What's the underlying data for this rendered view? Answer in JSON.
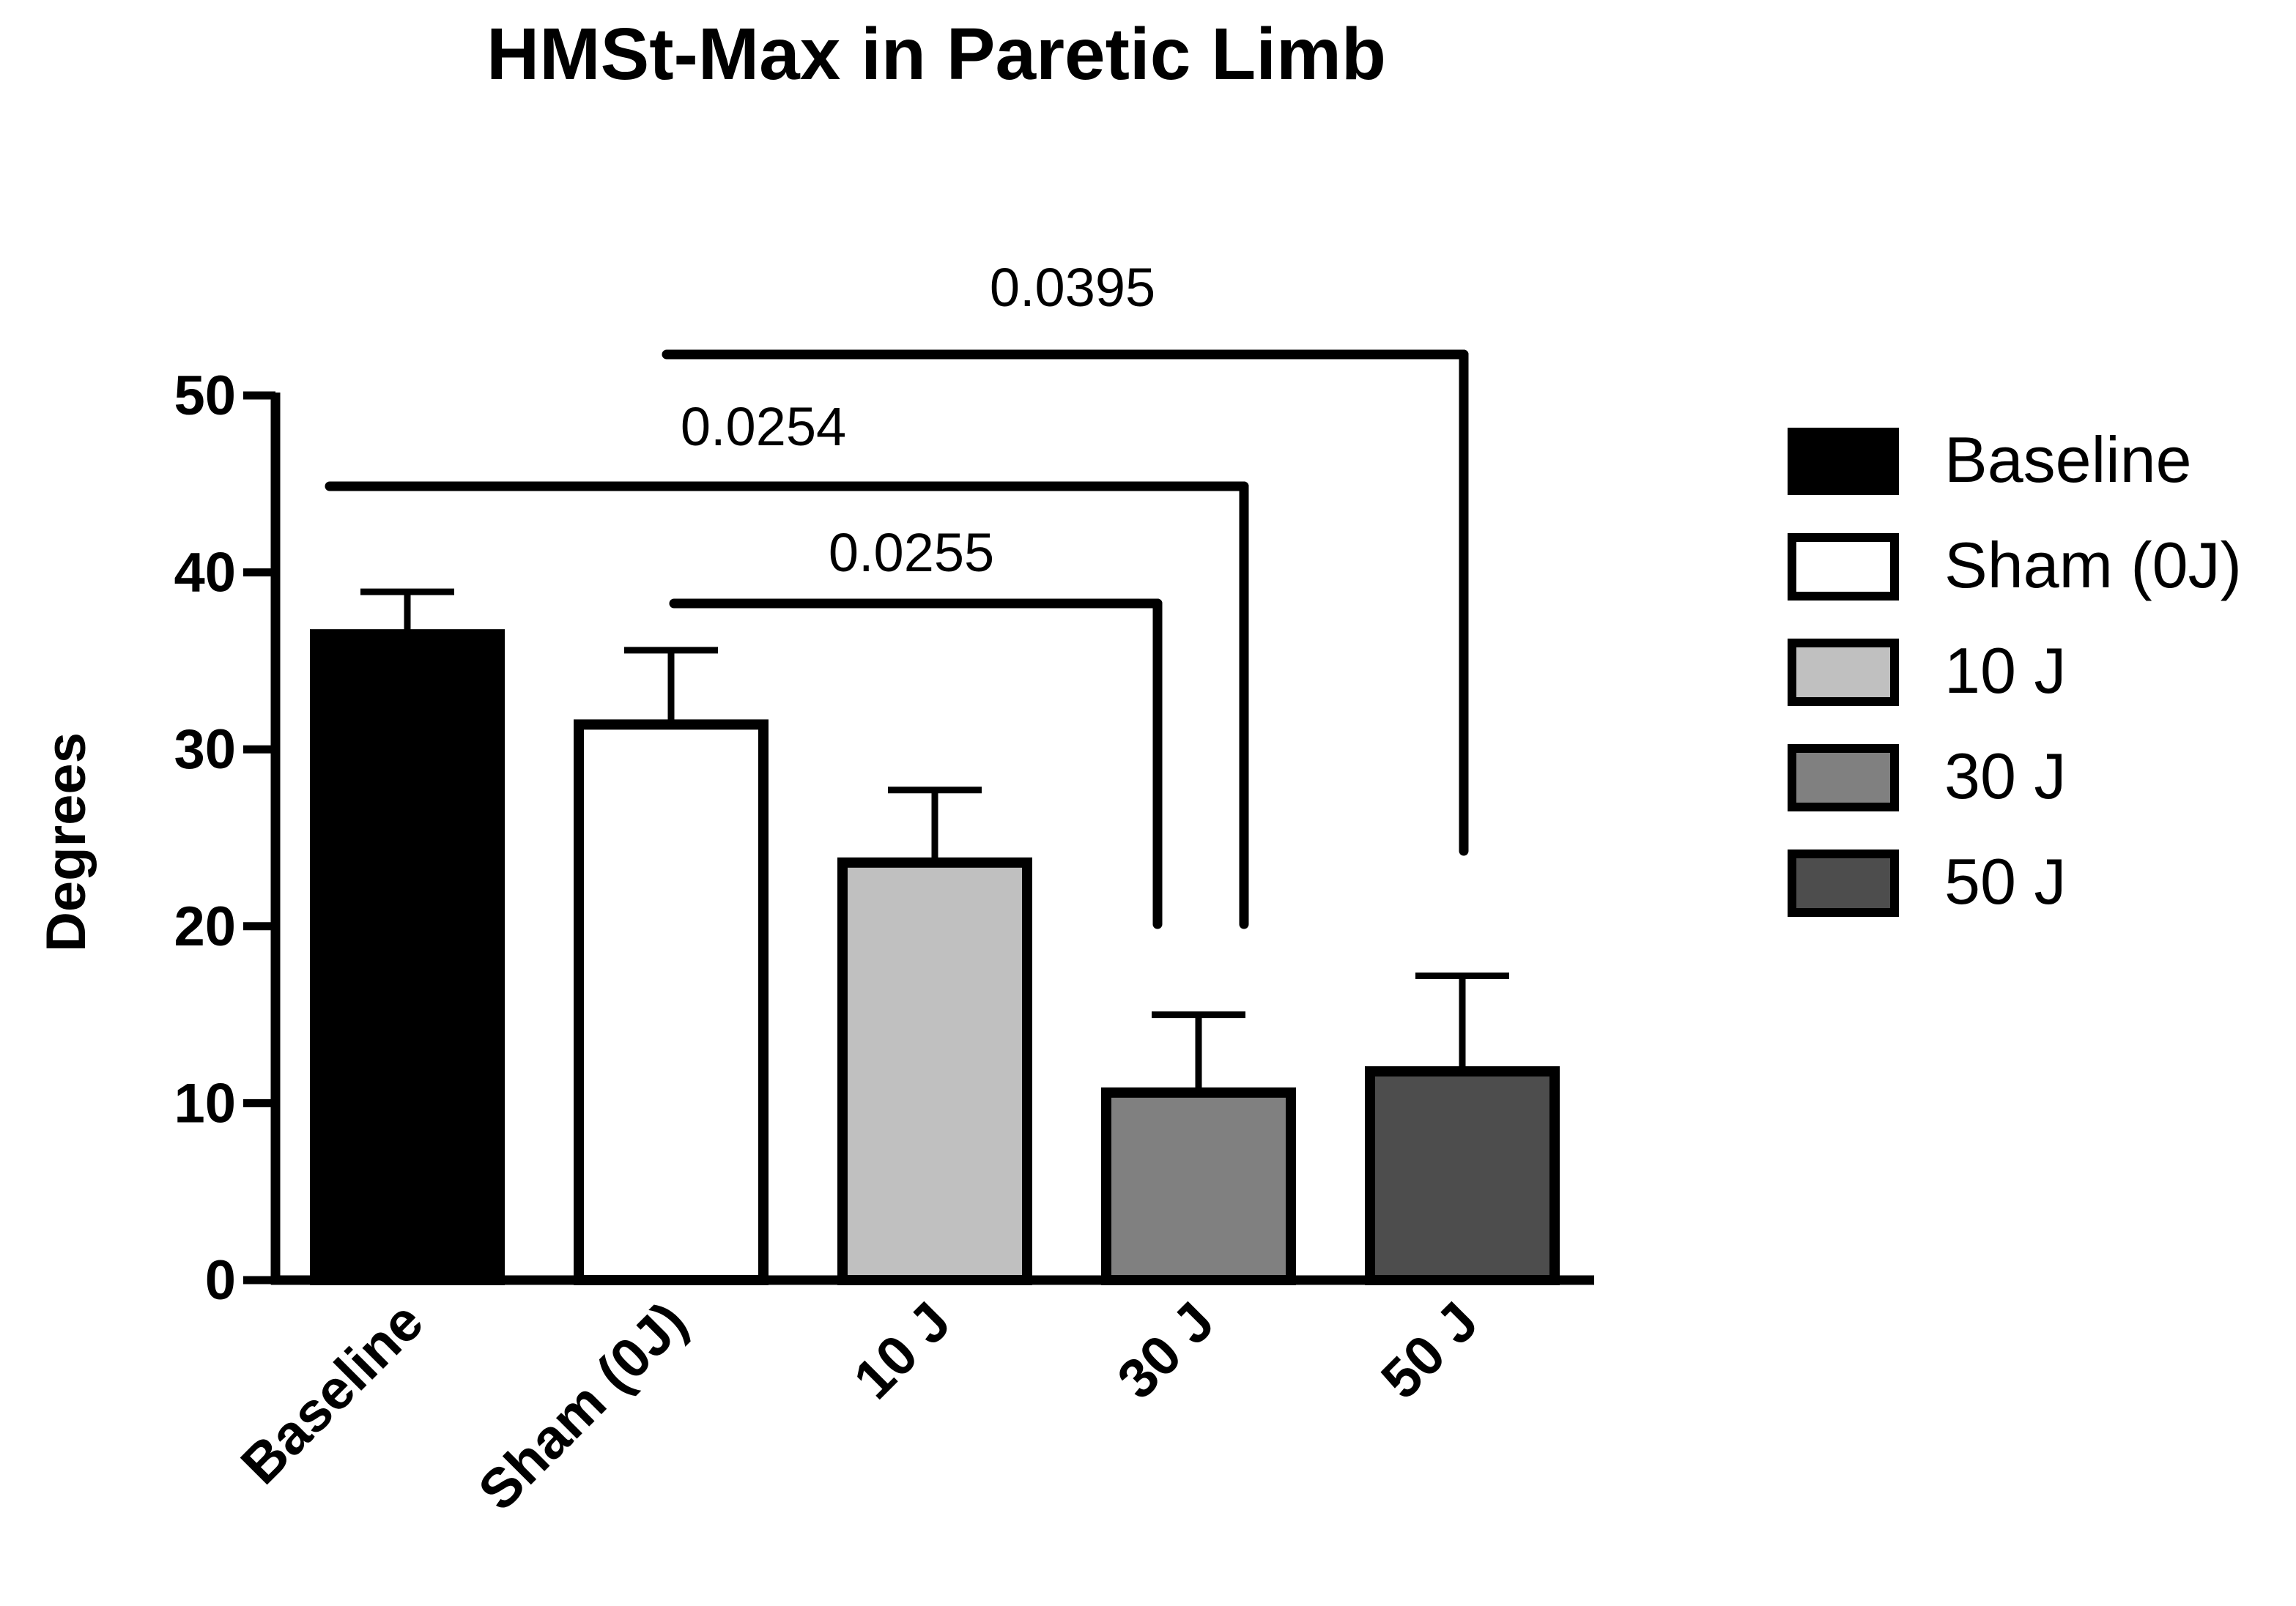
{
  "chart_data": {
    "type": "bar",
    "title": "HMSt-Max in Paretic Limb",
    "xlabel": "",
    "ylabel": "Degrees",
    "ylim": [
      0,
      50
    ],
    "yticks": [
      0,
      10,
      20,
      30,
      40,
      50
    ],
    "grid": false,
    "legend_position": "right",
    "categories": [
      "Baseline",
      "Sham (0J)",
      "10 J",
      "30 J",
      "50 J"
    ],
    "values": [
      36.5,
      31.4,
      23.6,
      10.6,
      11.8
    ],
    "error_upper": [
      2.4,
      4.2,
      4.1,
      4.4,
      5.4
    ],
    "colors": [
      "#000000",
      "#ffffff",
      "#c0c0c0",
      "#808080",
      "#4d4d4d"
    ],
    "legend": [
      "Baseline",
      "Sham (0J)",
      "10 J",
      "30 J",
      "50 J"
    ],
    "annotations": [
      {
        "label": "0.0255",
        "from": "Sham (0J)",
        "to": "30 J"
      },
      {
        "label": "0.0254",
        "from": "Baseline",
        "to": "30 J"
      },
      {
        "label": "0.0395",
        "from": "Sham (0J)",
        "to": "50 J"
      }
    ]
  }
}
